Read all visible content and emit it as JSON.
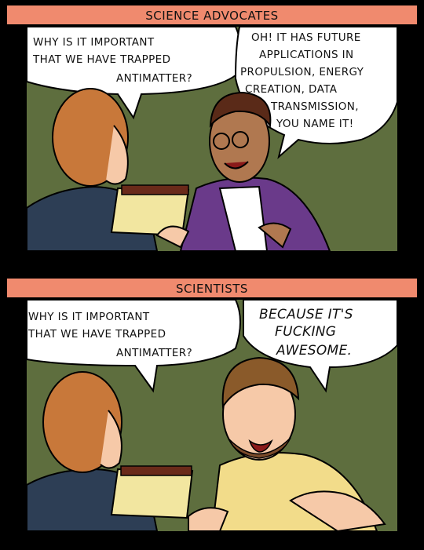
{
  "panel1": {
    "caption": "SCIENCE ADVOCATES",
    "question_lines": [
      "WHY IS IT IMPORTANT",
      "THAT WE HAVE TRAPPED",
      "ANTIMATTER?"
    ],
    "answer_lines": [
      "OH! IT HAS FUTURE",
      "APPLICATIONS IN",
      "PROPULSION, ENERGY",
      "CREATION, DATA",
      "TRANSMISSION,",
      "YOU NAME IT!"
    ]
  },
  "panel2": {
    "caption": "SCIENTISTS",
    "question_lines": [
      "WHY IS IT IMPORTANT",
      "THAT WE HAVE TRAPPED",
      "ANTIMATTER?"
    ],
    "answer_lines": [
      "BECAUSE IT'S",
      "FUCKING",
      "AWESOME."
    ]
  },
  "colors": {
    "caption_bg": "#f08a6e",
    "wall": "#5e6e3e",
    "hair": "#c8783a",
    "jacket": "#2d3e55",
    "skin": "#f6c9a8",
    "purple": "#6a3a8a",
    "yellow_shirt": "#f2dc8a"
  }
}
